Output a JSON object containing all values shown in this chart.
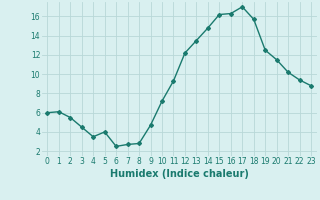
{
  "xlabel": "Humidex (Indice chaleur)",
  "x": [
    0,
    1,
    2,
    3,
    4,
    5,
    6,
    7,
    8,
    9,
    10,
    11,
    12,
    13,
    14,
    15,
    16,
    17,
    18,
    19,
    20,
    21,
    22,
    23
  ],
  "y": [
    6.0,
    6.1,
    5.5,
    4.5,
    3.5,
    4.0,
    2.5,
    2.7,
    2.8,
    4.7,
    7.2,
    9.3,
    12.2,
    13.5,
    14.8,
    16.2,
    16.3,
    17.0,
    15.7,
    12.5,
    11.5,
    10.2,
    9.4,
    8.8
  ],
  "line_color": "#1a7a6e",
  "marker": "D",
  "marker_size": 2.0,
  "bg_color": "#d9f0f0",
  "grid_color": "#b8d8d8",
  "ylim": [
    1.5,
    17.5
  ],
  "xlim": [
    -0.5,
    23.5
  ],
  "yticks": [
    2,
    4,
    6,
    8,
    10,
    12,
    14,
    16
  ],
  "xticks": [
    0,
    1,
    2,
    3,
    4,
    5,
    6,
    7,
    8,
    9,
    10,
    11,
    12,
    13,
    14,
    15,
    16,
    17,
    18,
    19,
    20,
    21,
    22,
    23
  ],
  "tick_color": "#1a7a6e",
  "tick_fontsize": 5.5,
  "xlabel_fontsize": 7.0,
  "line_width": 1.0
}
